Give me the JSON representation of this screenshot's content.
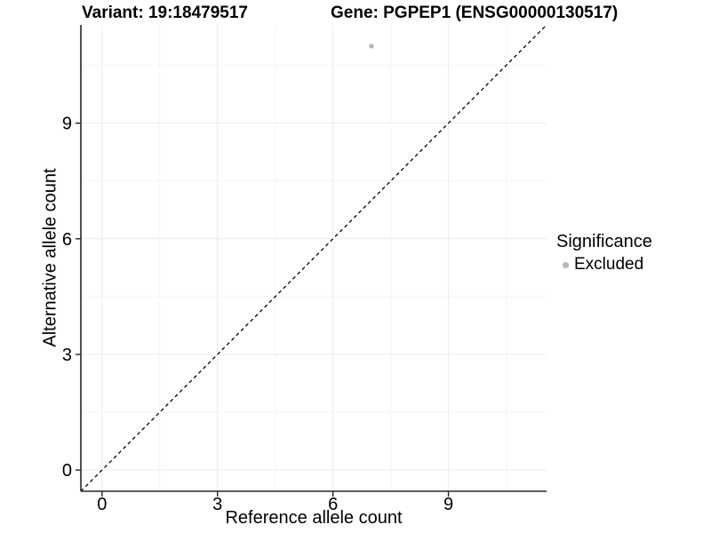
{
  "chart_data": {
    "type": "scatter",
    "title_left": "Variant: 19:18479517",
    "title_right": "Gene: PGPEP1 (ENSG00000130517)",
    "xlabel": "Reference allele count",
    "ylabel": "Alternative allele count",
    "x_ticks": [
      0,
      3,
      6,
      9
    ],
    "y_ticks": [
      0,
      3,
      6,
      9
    ],
    "x_minor": [
      1.5,
      4.5,
      7.5,
      10.5
    ],
    "y_minor": [
      1.5,
      4.5,
      7.5,
      10.5
    ],
    "xlim": [
      -0.55,
      11.55
    ],
    "ylim": [
      -0.55,
      11.55
    ],
    "grid": true,
    "legend_position": "right",
    "series": [
      {
        "name": "Excluded",
        "color": "#b8b8b8",
        "points": [
          {
            "x": 7,
            "y": 11
          }
        ]
      }
    ],
    "reference_line": {
      "type": "identity",
      "style": "dashed",
      "color": "#000000"
    },
    "legend": {
      "title": "Significance",
      "entries": [
        {
          "label": "Excluded",
          "color": "#b8b8b8"
        }
      ]
    },
    "colors": {
      "background": "#ffffff",
      "grid_major": "#ececec",
      "grid_minor": "#f5f5f5",
      "axis": "#262626",
      "text": "#000000",
      "point": "#b8b8b8"
    }
  }
}
